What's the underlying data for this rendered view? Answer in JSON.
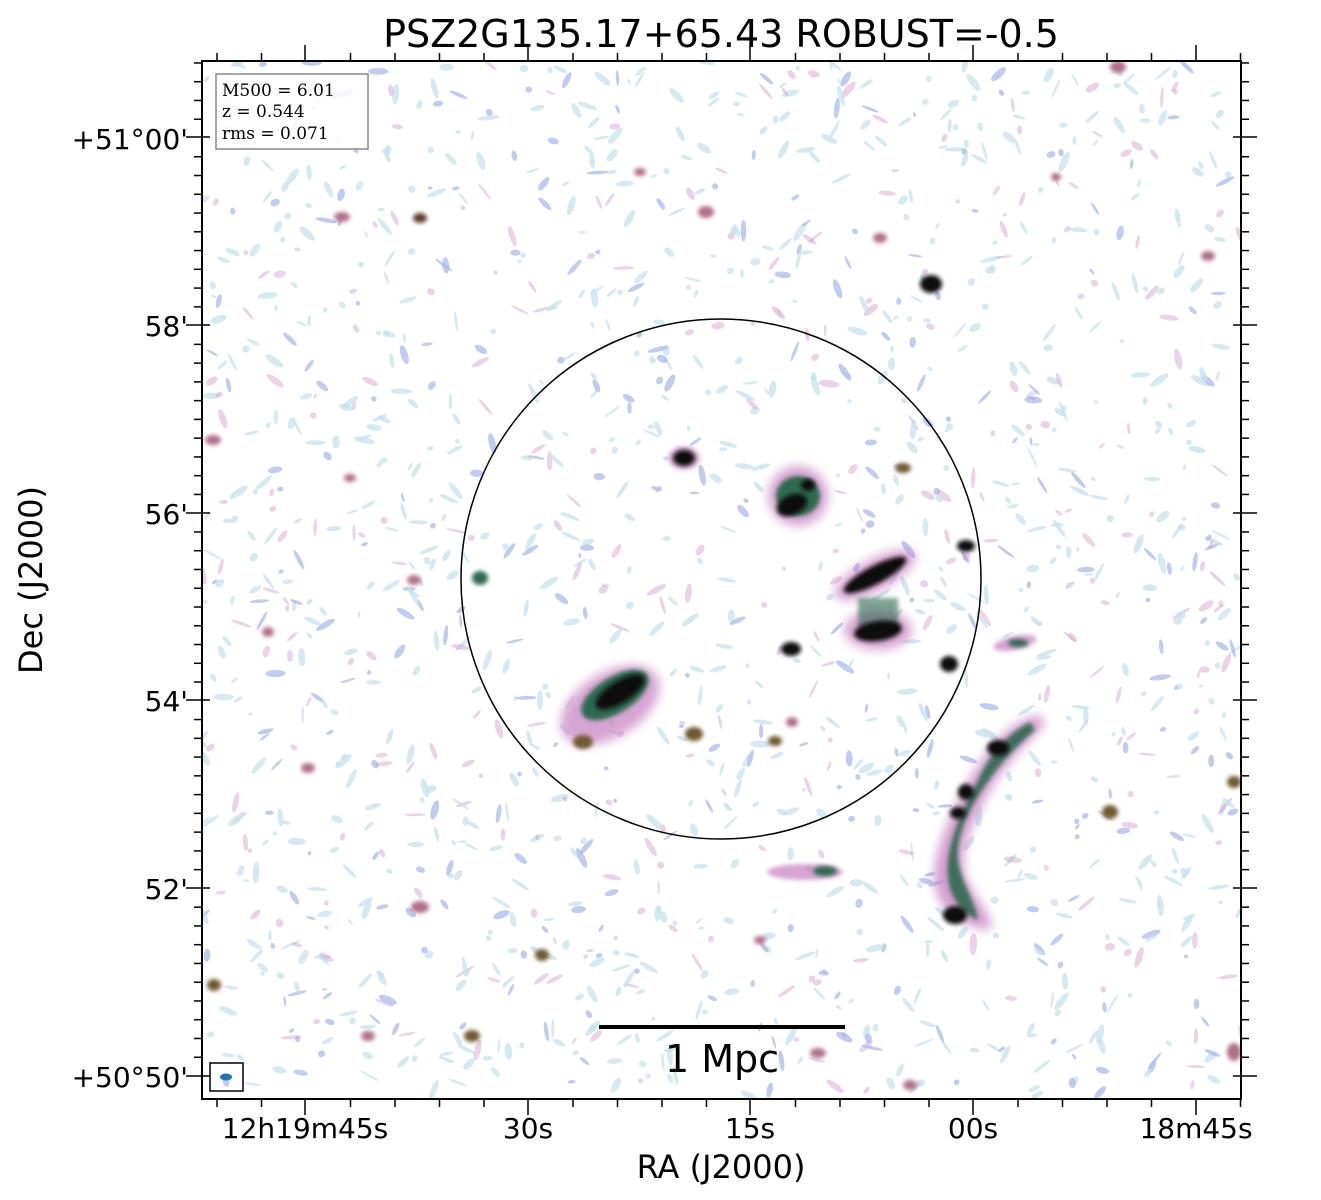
{
  "figure": {
    "title": "PSZ2G135.17+65.43 ROBUST=-0.5",
    "xlabel": "RA (J2000)",
    "ylabel": "Dec (J2000)",
    "x_ticks": [
      "12h19m45s",
      "30s",
      "15s",
      "00s",
      "18m45s"
    ],
    "y_ticks": [
      "+51°00'",
      "58'",
      "56'",
      "54'",
      "52'",
      "+50°50'"
    ],
    "info": {
      "m500": "M500 = 6.01",
      "z": "z = 0.544",
      "rms": "rms = 0.071"
    },
    "scale_bar_label": "1 Mpc",
    "colors": {
      "noise_light": "#c6e2ee",
      "noise_mid": "#a9b9ec",
      "emission_pink": "#c77fc0",
      "emission_green": "#2e6b50",
      "core": "#000000"
    }
  }
}
